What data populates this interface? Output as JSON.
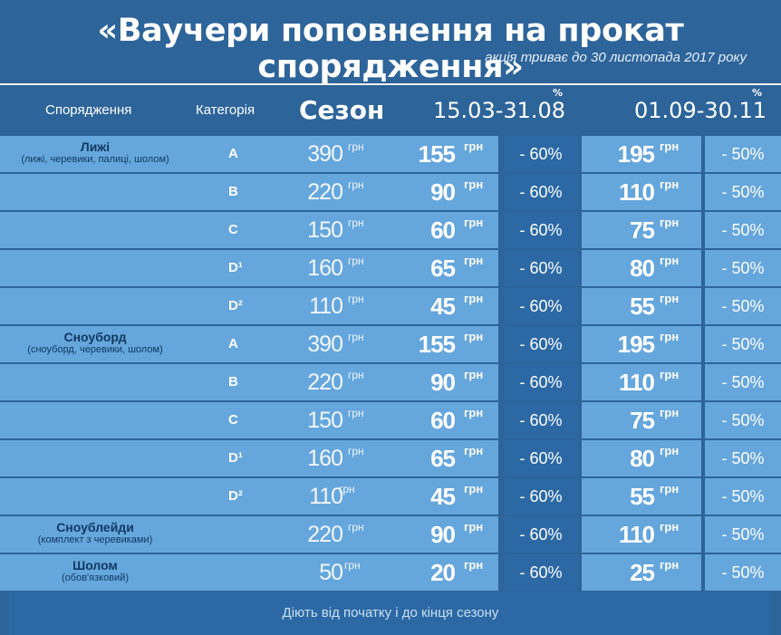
{
  "title": "«Ваучери поповнення на прокат спорядження»",
  "subtitle": "акція триває до 30 листопада 2017 року",
  "header": {
    "equipment": "Спорядження",
    "category": "Категорія",
    "season": "Сезон",
    "period1": "15.03-31.08",
    "period2": "01.09-30.11",
    "pct_mark": "%"
  },
  "currency": "грн",
  "groups": [
    {
      "name": "Лижі",
      "sub": "(лижі, черевики, палиці, шолом)"
    },
    {
      "name": "Сноуборд",
      "sub": "(сноуборд, черевики, шолом)"
    },
    {
      "name": "Сноублейди",
      "sub": "(комплект з черевиками)"
    },
    {
      "name": "Шолом",
      "sub": "(обов'язковий)"
    }
  ],
  "rows": [
    {
      "cat": "A",
      "season": "390",
      "p1": "155",
      "d1": "- 60%",
      "p2": "195",
      "d2": "- 50%"
    },
    {
      "cat": "B",
      "season": "220",
      "p1": "90",
      "d1": "- 60%",
      "p2": "110",
      "d2": "- 50%"
    },
    {
      "cat": "C",
      "season": "150",
      "p1": "60",
      "d1": "- 60%",
      "p2": "75",
      "d2": "- 50%"
    },
    {
      "cat": "D¹",
      "season": "160",
      "p1": "65",
      "d1": "- 60%",
      "p2": "80",
      "d2": "- 50%"
    },
    {
      "cat": "D²",
      "season": "110",
      "p1": "45",
      "d1": "- 60%",
      "p2": "55",
      "d2": "- 50%"
    },
    {
      "cat": "A",
      "season": "390",
      "p1": "155",
      "d1": "- 60%",
      "p2": "195",
      "d2": "- 50%"
    },
    {
      "cat": "B",
      "season": "220",
      "p1": "90",
      "d1": "- 60%",
      "p2": "110",
      "d2": "- 50%"
    },
    {
      "cat": "C",
      "season": "150",
      "p1": "60",
      "d1": "- 60%",
      "p2": "75",
      "d2": "- 50%"
    },
    {
      "cat": "D¹",
      "season": "160",
      "p1": "65",
      "d1": "- 60%",
      "p2": "80",
      "d2": "- 50%"
    },
    {
      "cat": "D²",
      "season": "110",
      "p1": "45",
      "d1": "- 60%",
      "p2": "55",
      "d2": "- 50%"
    },
    {
      "cat": "",
      "season": "220",
      "p1": "90",
      "d1": "- 60%",
      "p2": "110",
      "d2": "- 50%"
    },
    {
      "cat": "",
      "season": "50",
      "p1": "20",
      "d1": "- 60%",
      "p2": "25",
      "d2": "- 50%"
    }
  ],
  "footer": "Діють від початку і до кінця сезону",
  "colors": {
    "background": "#2d6499",
    "row": "#65a6dc",
    "highlight": "#2c69a4",
    "label_text": "#123a62"
  }
}
